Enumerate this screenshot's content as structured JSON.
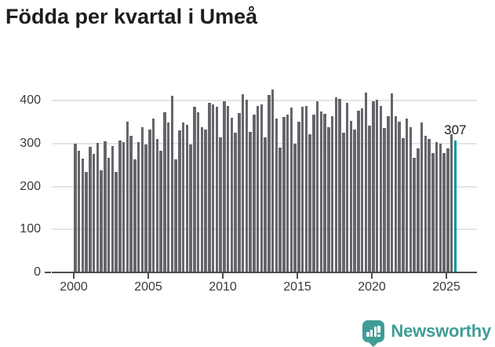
{
  "title": "Födda per kvartal i Umeå",
  "chart_data": {
    "type": "bar",
    "title": "Födda per kvartal i Umeå",
    "frequency": "quarterly",
    "x_start": "2000-Q1",
    "x_end": "2025-Q3",
    "x_tick_labels": [
      "2000",
      "2005",
      "2010",
      "2015",
      "2020",
      "2025"
    ],
    "y_ticks": [
      0,
      100,
      200,
      300,
      400
    ],
    "y_tick_labels": [
      "0",
      "100",
      "200",
      "300",
      "400"
    ],
    "ylim": [
      0,
      440
    ],
    "grid": "horizontal",
    "legend": "none",
    "bar_color": "#66656b",
    "highlight_color": "#00989e",
    "highlight_index": 102,
    "highlight_label": "307",
    "values": [
      300,
      283,
      265,
      233,
      292,
      276,
      301,
      238,
      305,
      266,
      294,
      233,
      307,
      303,
      350,
      318,
      263,
      303,
      337,
      297,
      332,
      358,
      311,
      283,
      373,
      348,
      411,
      263,
      330,
      349,
      344,
      297,
      385,
      372,
      338,
      332,
      395,
      390,
      385,
      314,
      399,
      387,
      360,
      326,
      370,
      414,
      402,
      327,
      367,
      387,
      390,
      315,
      413,
      425,
      358,
      291,
      362,
      368,
      384,
      300,
      350,
      385,
      387,
      322,
      368,
      399,
      374,
      369,
      338,
      363,
      407,
      403,
      326,
      395,
      352,
      332,
      377,
      381,
      419,
      342,
      399,
      402,
      388,
      336,
      364,
      416,
      364,
      350,
      312,
      358,
      338,
      267,
      288,
      349,
      318,
      310,
      278,
      303,
      299,
      278,
      288,
      322,
      307
    ]
  },
  "footer": {
    "brand": "Newsworthy",
    "brand_color": "#3f9d96",
    "logo_icon": "newsworthy-chart-bubble"
  },
  "colors": {
    "background": "#ffffff",
    "title": "#1d1d1d",
    "axis_line": "#4d4d4d",
    "axis_text": "#3a3a3a",
    "gridline": "#e4e4e4",
    "bar": "#66656b",
    "highlight": "#00989e"
  }
}
